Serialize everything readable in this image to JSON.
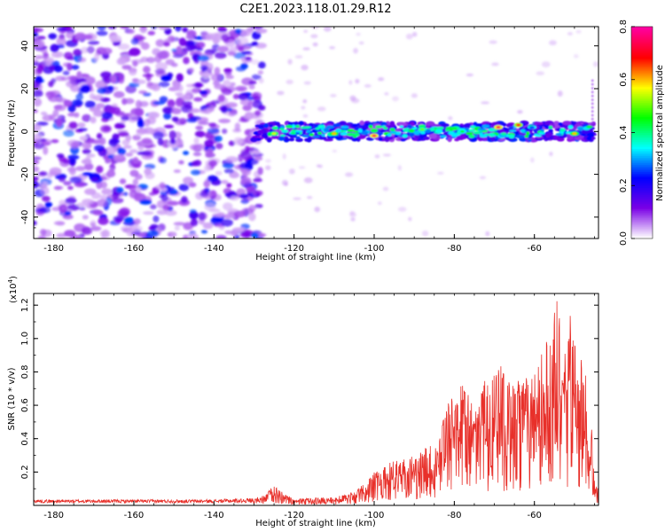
{
  "title": "C2E1.2023.118.01.29.R12",
  "chart_data": [
    {
      "type": "heatmap",
      "xlabel": "Height of straight line (km)",
      "ylabel": "Frequency (Hz)",
      "xlim": [
        -185,
        -44
      ],
      "ylim": [
        -50,
        49
      ],
      "xticks": [
        -180,
        -160,
        -140,
        -120,
        -100,
        -80,
        -60
      ],
      "yticks": [
        -40,
        -20,
        0,
        20,
        40
      ],
      "colorbar": {
        "label": "Normalized spectral amplitude",
        "range": [
          0,
          0.8
        ],
        "ticks": [
          0.0,
          0.2,
          0.4,
          0.6,
          0.8
        ],
        "colormap": [
          "#ffffff",
          "#7a00e6",
          "#0000ff",
          "#00ffff",
          "#00ff00",
          "#ffff00",
          "#ff0000",
          "#ff00a0"
        ]
      },
      "band": {
        "x_range": [
          -130,
          -45
        ],
        "center_frequency": 0,
        "half_width": 4,
        "peak_locations": [
          {
            "x": -100,
            "y": -2,
            "v": 0.75
          },
          {
            "x": -69,
            "y": 2,
            "v": 0.75
          },
          {
            "x": -64,
            "y": 3,
            "v": 0.7
          },
          {
            "x": -110,
            "y": -1,
            "v": 0.6
          },
          {
            "x": -125,
            "y": -1,
            "v": 0.55
          },
          {
            "x": -50,
            "y": -1,
            "v": 0.6
          },
          {
            "x": -88,
            "y": 1,
            "v": 0.5
          },
          {
            "x": -78,
            "y": 0,
            "v": 0.45
          }
        ]
      },
      "noise_region": {
        "x_range": [
          -185,
          -130
        ],
        "level": 0.2
      }
    },
    {
      "type": "line",
      "xlabel": "Height of straight line (km)",
      "ylabel": "SNR (10 * v/v)",
      "yscale_label": "(x10",
      "yscale_exp": "4",
      "xlim": [
        -185,
        -44
      ],
      "ylim": [
        0,
        1.27
      ],
      "xticks": [
        -180,
        -160,
        -140,
        -120,
        -100,
        -80,
        -60
      ],
      "yticks": [
        0.2,
        0.4,
        0.6,
        0.8,
        1.0,
        1.2
      ],
      "ytick_labels": [
        "0.2",
        "0.4",
        "0.6",
        "0.8",
        "1.0",
        "1.2"
      ],
      "color": "#e8302a",
      "envelope": {
        "x": [
          -185,
          -140,
          -130,
          -127,
          -125,
          -122,
          -120,
          -110,
          -105,
          -100,
          -95,
          -90,
          -85,
          -82,
          -80,
          -78,
          -75,
          -72,
          -70,
          -69,
          -66,
          -63,
          -60,
          -57,
          -54,
          -53,
          -51,
          -49,
          -48,
          -46,
          -45,
          -44
        ],
        "y": [
          0.03,
          0.03,
          0.04,
          0.07,
          0.13,
          0.06,
          0.04,
          0.05,
          0.08,
          0.2,
          0.27,
          0.3,
          0.38,
          0.62,
          0.65,
          0.75,
          0.57,
          0.8,
          0.78,
          0.88,
          0.72,
          0.76,
          0.8,
          1.0,
          1.27,
          0.8,
          1.15,
          0.88,
          0.93,
          0.6,
          0.15,
          0.1
        ]
      }
    }
  ]
}
